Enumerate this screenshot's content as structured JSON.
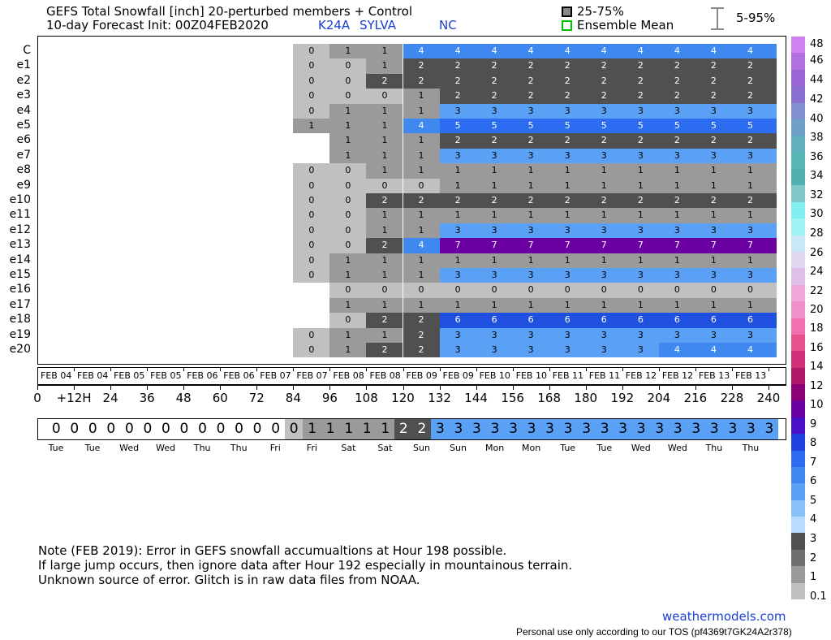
{
  "header": {
    "title": "GEFS Total Snowfall [inch]  20-perturbed members + Control",
    "init": "10-day Forecast Init: 00Z04FEB2020",
    "station": "K24A",
    "location": "SYLVA",
    "state": "NC",
    "legend_iqr": "25-75%",
    "legend_mean": "Ensemble Mean",
    "legend_range": "5-95%"
  },
  "chart_data": {
    "type": "heatmap",
    "title": "GEFS Total Snowfall [inch]  20-perturbed members + Control",
    "rows": [
      "C",
      "e1",
      "e2",
      "e3",
      "e4",
      "e5",
      "e6",
      "e7",
      "e8",
      "e9",
      "e10",
      "e11",
      "e12",
      "e13",
      "e14",
      "e15",
      "e16",
      "e17",
      "e18",
      "e19",
      "e20"
    ],
    "forecast_hours": [
      0,
      12,
      24,
      36,
      48,
      60,
      72,
      84,
      96,
      108,
      120,
      132,
      144,
      156,
      168,
      180,
      192,
      204,
      216,
      228,
      240
    ],
    "hour_tick_labels": [
      "0",
      "+12H",
      "24",
      "36",
      "48",
      "60",
      "72",
      "84",
      "96",
      "108",
      "120",
      "132",
      "144",
      "156",
      "168",
      "180",
      "192",
      "204",
      "216",
      "228",
      "240"
    ],
    "date_labels": [
      "FEB 04",
      "FEB 04",
      "FEB 05",
      "FEB 05",
      "FEB 06",
      "FEB 06",
      "FEB 07",
      "FEB 07",
      "FEB 08",
      "FEB 08",
      "FEB 09",
      "FEB 09",
      "FEB 10",
      "FEB 10",
      "FEB 11",
      "FEB 11",
      "FEB 12",
      "FEB 12",
      "FEB 13",
      "FEB 13"
    ],
    "members": {
      "C": {
        "start_hour": 84,
        "values": [
          0,
          1,
          1,
          4,
          4,
          4,
          4,
          4,
          4,
          4,
          4,
          4,
          4,
          4
        ],
        "shown_labels": [
          0,
          1,
          1,
          4,
          4,
          4,
          4,
          4,
          4,
          4,
          4,
          4,
          4
        ]
      },
      "e1": {
        "start_hour": 84,
        "values": [
          0,
          0,
          1,
          2,
          2,
          2,
          2,
          2,
          2,
          2,
          2,
          2,
          2,
          2
        ],
        "shown_labels": [
          0,
          0,
          1,
          2,
          2,
          2,
          2,
          2,
          2,
          2,
          2,
          2,
          2
        ]
      },
      "e2": {
        "start_hour": 84,
        "values": [
          0,
          0,
          2,
          2,
          2,
          2,
          2,
          2,
          2,
          2,
          2,
          2,
          2,
          2
        ],
        "shown_labels": [
          0,
          0,
          2,
          2,
          2,
          2,
          2,
          2,
          2,
          2,
          2,
          2,
          2
        ]
      },
      "e3": {
        "start_hour": 84,
        "values": [
          0,
          0,
          0,
          1,
          2,
          2,
          2,
          2,
          2,
          2,
          2,
          2,
          2,
          2
        ],
        "shown_labels": [
          0,
          0,
          0,
          1,
          2,
          2,
          2,
          2,
          2,
          2,
          2,
          2,
          2
        ]
      },
      "e4": {
        "start_hour": 84,
        "values": [
          0,
          1,
          1,
          1,
          3,
          3,
          3,
          3,
          3,
          3,
          3,
          3,
          3,
          3
        ],
        "shown_labels": [
          0,
          1,
          1,
          1,
          3,
          3,
          3,
          3,
          3,
          3,
          3,
          3,
          3
        ]
      },
      "e5": {
        "start_hour": 84,
        "values": [
          1,
          1,
          1,
          4,
          5,
          5,
          5,
          5,
          5,
          5,
          5,
          5,
          5,
          5
        ],
        "shown_labels": [
          1,
          1,
          1,
          4,
          5,
          5,
          5,
          5,
          5,
          5,
          5,
          5,
          5
        ]
      },
      "e6": {
        "start_hour": 96,
        "values": [
          1,
          1,
          1,
          2,
          2,
          2,
          2,
          2,
          2,
          2,
          2,
          2,
          2
        ],
        "shown_labels": [
          1,
          1,
          1,
          2,
          2,
          2,
          2,
          2,
          2,
          2,
          2,
          2
        ]
      },
      "e7": {
        "start_hour": 96,
        "values": [
          1,
          1,
          1,
          3,
          3,
          3,
          3,
          3,
          3,
          3,
          3,
          3,
          3
        ],
        "shown_labels": [
          1,
          1,
          1,
          3,
          3,
          3,
          3,
          3,
          3,
          3,
          3,
          3
        ]
      },
      "e8": {
        "start_hour": 84,
        "values": [
          0,
          0,
          1,
          1,
          1,
          1,
          1,
          1,
          1,
          1,
          1,
          1,
          1,
          1
        ],
        "shown_labels": [
          0,
          0,
          1,
          1,
          1,
          1,
          1,
          1,
          1,
          1,
          1,
          1,
          1
        ]
      },
      "e9": {
        "start_hour": 84,
        "values": [
          0,
          0,
          0,
          0,
          1,
          1,
          1,
          1,
          1,
          1,
          1,
          1,
          1,
          1
        ],
        "shown_labels": [
          0,
          0,
          0,
          0,
          1,
          1,
          1,
          1,
          1,
          1,
          1,
          1,
          1
        ]
      },
      "e10": {
        "start_hour": 84,
        "values": [
          0,
          0,
          2,
          2,
          2,
          2,
          2,
          2,
          2,
          2,
          2,
          2,
          2,
          2
        ],
        "shown_labels": [
          0,
          0,
          2,
          2,
          2,
          2,
          2,
          2,
          2,
          2,
          2,
          2,
          2
        ]
      },
      "e11": {
        "start_hour": 84,
        "values": [
          0,
          0,
          1,
          1,
          1,
          1,
          1,
          1,
          1,
          1,
          1,
          1,
          1,
          1
        ],
        "shown_labels": [
          0,
          0,
          1,
          1,
          1,
          1,
          1,
          1,
          1,
          1,
          1,
          1,
          1
        ]
      },
      "e12": {
        "start_hour": 84,
        "values": [
          0,
          0,
          1,
          1,
          3,
          3,
          3,
          3,
          3,
          3,
          3,
          3,
          3,
          3
        ],
        "shown_labels": [
          0,
          0,
          1,
          1,
          3,
          3,
          3,
          3,
          3,
          3,
          3,
          3,
          3
        ]
      },
      "e13": {
        "start_hour": 84,
        "values": [
          0,
          0,
          2,
          4,
          7,
          7,
          7,
          7,
          7,
          7,
          7,
          7,
          7,
          7
        ],
        "shown_labels": [
          0,
          0,
          2,
          4,
          7,
          7,
          7,
          7,
          7,
          7,
          7,
          7,
          7
        ]
      },
      "e14": {
        "start_hour": 84,
        "values": [
          0,
          1,
          1,
          1,
          1,
          1,
          1,
          1,
          1,
          1,
          1,
          1,
          1,
          1
        ],
        "shown_labels": [
          0,
          1,
          1,
          1,
          1,
          1,
          1,
          1,
          1,
          1,
          1,
          1,
          1
        ]
      },
      "e15": {
        "start_hour": 84,
        "values": [
          0,
          1,
          1,
          1,
          3,
          3,
          3,
          3,
          3,
          3,
          3,
          3,
          3,
          3
        ],
        "shown_labels": [
          0,
          1,
          1,
          1,
          3,
          3,
          3,
          3,
          3,
          3,
          3,
          3,
          3
        ]
      },
      "e16": {
        "start_hour": 96,
        "values": [
          0,
          0,
          0,
          0,
          0,
          0,
          0,
          0,
          0,
          0,
          0,
          0,
          0
        ],
        "shown_labels": [
          0,
          0,
          0,
          0,
          0,
          0,
          0,
          0,
          0,
          0,
          0,
          0
        ]
      },
      "e17": {
        "start_hour": 96,
        "values": [
          1,
          1,
          1,
          1,
          1,
          1,
          1,
          1,
          1,
          1,
          1,
          1,
          1
        ],
        "shown_labels": [
          1,
          1,
          1,
          1,
          1,
          1,
          1,
          1,
          1,
          1,
          1,
          1
        ]
      },
      "e18": {
        "start_hour": 96,
        "values": [
          0,
          2,
          2,
          6,
          6,
          6,
          6,
          6,
          6,
          6,
          6,
          6,
          6
        ],
        "shown_labels": [
          0,
          2,
          2,
          6,
          6,
          6,
          6,
          6,
          6,
          6,
          6,
          6
        ]
      },
      "e19": {
        "start_hour": 84,
        "values": [
          0,
          1,
          1,
          2,
          3,
          3,
          3,
          3,
          3,
          3,
          3,
          3,
          3,
          3
        ],
        "shown_labels": [
          0,
          1,
          1,
          2,
          3,
          3,
          3,
          3,
          3,
          3,
          3,
          3,
          3
        ]
      },
      "e20": {
        "start_hour": 84,
        "values": [
          0,
          1,
          2,
          2,
          3,
          3,
          3,
          3,
          3,
          3,
          4,
          4,
          4,
          4
        ],
        "shown_labels": [
          0,
          1,
          2,
          2,
          3,
          3,
          3,
          3,
          3,
          3,
          4,
          4,
          4
        ]
      }
    },
    "ensemble_mean": [
      0,
      0,
      0,
      0,
      0,
      0,
      0,
      0,
      0,
      0,
      0,
      0,
      0,
      0,
      1,
      1,
      1,
      1,
      1,
      2,
      2,
      3,
      3,
      3,
      3,
      3,
      3,
      3,
      3,
      3,
      3,
      3,
      3,
      3,
      3,
      3,
      3,
      3,
      3,
      3
    ],
    "day_labels": [
      "Tue",
      "Tue",
      "Wed",
      "Wed",
      "Thu",
      "Thu",
      "Fri",
      "Fri",
      "Sat",
      "Sat",
      "Sun",
      "Sun",
      "Mon",
      "Mon",
      "Tue",
      "Tue",
      "Wed",
      "Wed",
      "Thu",
      "Thu"
    ],
    "colorbar_labels": [
      "48",
      "46",
      "44",
      "42",
      "40",
      "38",
      "36",
      "34",
      "32",
      "30",
      "28",
      "26",
      "24",
      "22",
      "20",
      "18",
      "16",
      "14",
      "12",
      "10",
      "9",
      "8",
      "7",
      "6",
      "5",
      "4",
      "3",
      "2",
      "1",
      "0.1"
    ],
    "colorbar_colors": [
      "#d080f0",
      "#b070e0",
      "#9a66d6",
      "#8a6fd0",
      "#8090d0",
      "#70a0c8",
      "#60b0c0",
      "#58b8b8",
      "#50b0b0",
      "#80c8c8",
      "#80f0f0",
      "#a0f4f4",
      "#c8e8f8",
      "#e0d8f0",
      "#e0c0e8",
      "#f0a8d8",
      "#f090c8",
      "#f070b0",
      "#e85090",
      "#d03078",
      "#b01868",
      "#8c0078",
      "#6a00a0",
      "#4a10c8",
      "#2040e0",
      "#2b6cf0",
      "#3f88f0",
      "#5aa0f4",
      "#88c0fa",
      "#b8dcff",
      "#505050",
      "#707070",
      "#9a9a9a",
      "#c0c0c0"
    ],
    "colors": {
      "0": "#c0c0c0",
      "1": "#9a9a9a",
      "2": "#505050",
      "3": "#5aa0f4",
      "4": "#3f88f0",
      "5": "#2b6cf0",
      "6": "#2050e0",
      "7": "#6a00a0"
    }
  },
  "notes": {
    "line1": "Note (FEB 2019): Error in GEFS snowfall accumualtions at Hour 198 possible.",
    "line2": "If large jump occurs, then ignore data after Hour 192 especially in mountainous terrain.",
    "line3": "Unknown source of error.  Glitch is in raw data files from NOAA."
  },
  "footer": {
    "site": "weathermodels.com",
    "tos": "Personal use only according to our TOS (pf4369t7GK24A2r378)"
  }
}
